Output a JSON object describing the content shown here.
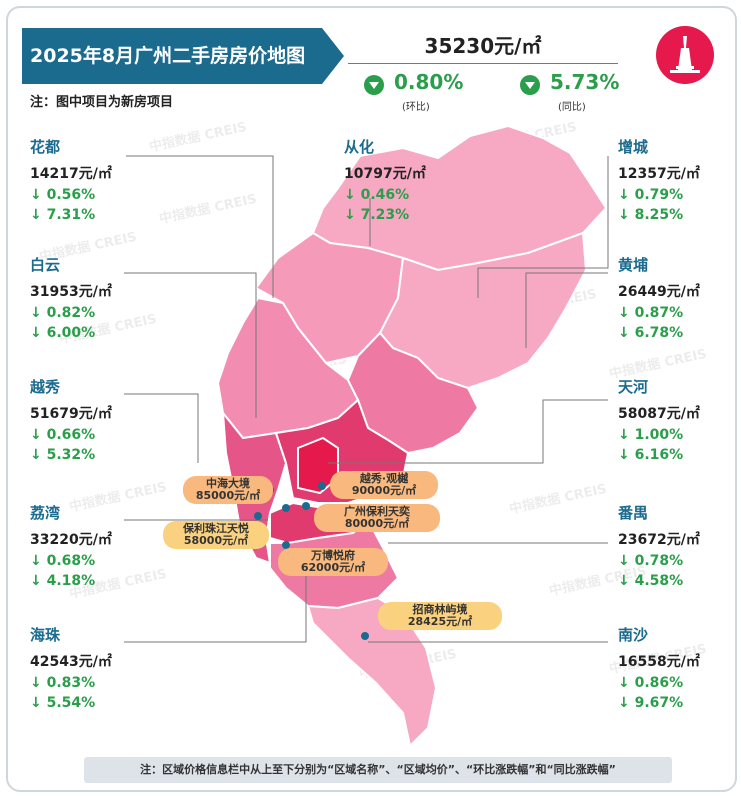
{
  "header": {
    "title": "2025年8月广州二手房房价地图",
    "note": "注：图中项目为新房项目"
  },
  "summary": {
    "avg_price": "35230元/㎡",
    "mom_pct": "0.80%",
    "mom_label": "(环比)",
    "yoy_pct": "5.73%",
    "yoy_label": "(同比)"
  },
  "districts": {
    "huadu": {
      "name": "花都",
      "price": "14217元/㎡",
      "mom": "↓ 0.56%",
      "yoy": "↓ 7.31%"
    },
    "baiyun": {
      "name": "白云",
      "price": "31953元/㎡",
      "mom": "↓ 0.82%",
      "yoy": "↓ 6.00%"
    },
    "yuexiu": {
      "name": "越秀",
      "price": "51679元/㎡",
      "mom": "↓ 0.66%",
      "yoy": "↓ 5.32%"
    },
    "liwan": {
      "name": "荔湾",
      "price": "33220元/㎡",
      "mom": "↓ 0.68%",
      "yoy": "↓ 4.18%"
    },
    "haizhu": {
      "name": "海珠",
      "price": "42543元/㎡",
      "mom": "↓ 0.83%",
      "yoy": "↓ 5.54%"
    },
    "conghua": {
      "name": "从化",
      "price": "10797元/㎡",
      "mom": "↓ 0.46%",
      "yoy": "↓ 7.23%"
    },
    "zengcheng": {
      "name": "增城",
      "price": "12357元/㎡",
      "mom": "↓ 0.79%",
      "yoy": "↓ 8.25%"
    },
    "huangpu": {
      "name": "黄埔",
      "price": "26449元/㎡",
      "mom": "↓ 0.87%",
      "yoy": "↓ 6.78%"
    },
    "tianhe": {
      "name": "天河",
      "price": "58087元/㎡",
      "mom": "↓ 1.00%",
      "yoy": "↓ 6.16%"
    },
    "panyu": {
      "name": "番禺",
      "price": "23672元/㎡",
      "mom": "↓ 0.78%",
      "yoy": "↓ 4.58%"
    },
    "nansha": {
      "name": "南沙",
      "price": "16558元/㎡",
      "mom": "↓ 0.86%",
      "yoy": "↓ 9.67%"
    }
  },
  "projects": {
    "zhonghai": {
      "name": "中海大境",
      "price": "85000元/㎡"
    },
    "yuexiu_guanlan": {
      "name": "越秀·观樾",
      "price": "90000元/㎡"
    },
    "baoli_tianyi": {
      "name": "广州保利天奕",
      "price": "80000元/㎡"
    },
    "baoli_zhujiang": {
      "name": "保利珠江天悦",
      "price": "58000元/㎡"
    },
    "wanbo": {
      "name": "万博悦府",
      "price": "62000元/㎡"
    },
    "zhaoshang": {
      "name": "招商林屿境",
      "price": "28425元/㎡"
    }
  },
  "watermark": "中指数据 CREIS",
  "footer": {
    "note": "注：区域价格信息栏中从上至下分别为“区域名称”、“区域均价”、“环比涨跌幅”和“同比涨跌幅”"
  },
  "colors": {
    "title_bg": "#1b6b8f",
    "green": "#2a9e4b",
    "light_pink": "#f7a8c3",
    "mid_pink": "#ee7aa3",
    "deep_pink": "#e03a6e",
    "red": "#e5194c"
  }
}
